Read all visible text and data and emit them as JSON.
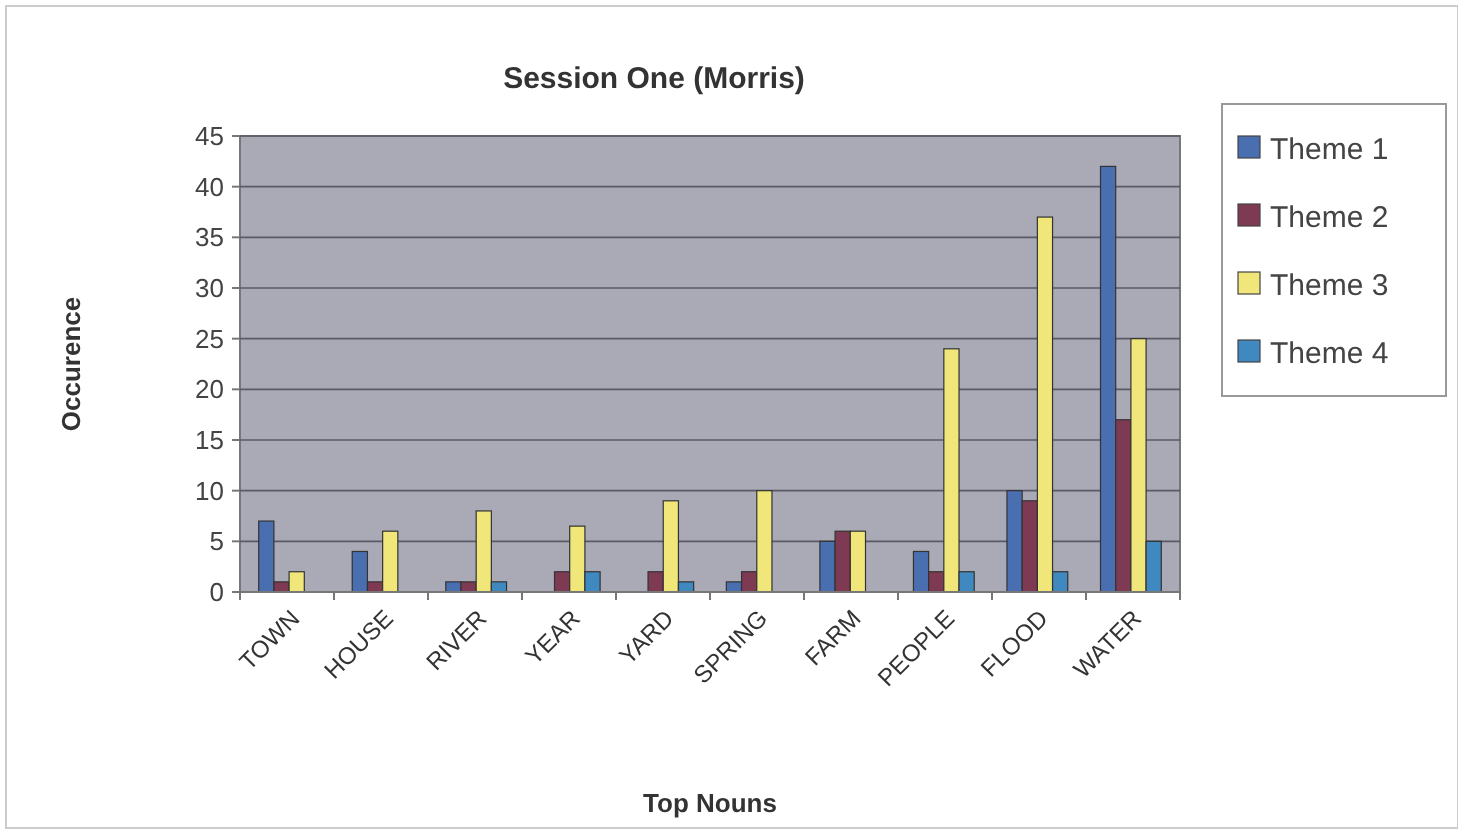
{
  "chart_data": {
    "type": "bar",
    "title": "Session One (Morris)",
    "xlabel": "Top Nouns",
    "ylabel": "Occurence",
    "categories": [
      "TOWN",
      "HOUSE",
      "RIVER",
      "YEAR",
      "YARD",
      "SPRING",
      "FARM",
      "PEOPLE",
      "FLOOD",
      "WATER"
    ],
    "series": [
      {
        "name": "Theme 1",
        "color": "#4a6fb0",
        "values": [
          7,
          4,
          1,
          0,
          0,
          1,
          5,
          4,
          10,
          42
        ]
      },
      {
        "name": "Theme 2",
        "color": "#7e3a52",
        "values": [
          1,
          1,
          1,
          2,
          2,
          2,
          6,
          2,
          9,
          17
        ]
      },
      {
        "name": "Theme 3",
        "color": "#f0e67a",
        "values": [
          2,
          6,
          8,
          6.5,
          9,
          10,
          6,
          24,
          37,
          25
        ]
      },
      {
        "name": "Theme 4",
        "color": "#3f88c0",
        "values": [
          0,
          0,
          1,
          2,
          1,
          0,
          0,
          2,
          2,
          5
        ]
      }
    ],
    "ylim": [
      0,
      45
    ],
    "yticks": [
      0,
      5,
      10,
      15,
      20,
      25,
      30,
      35,
      40,
      45
    ],
    "grid": "y",
    "legend": "right"
  }
}
